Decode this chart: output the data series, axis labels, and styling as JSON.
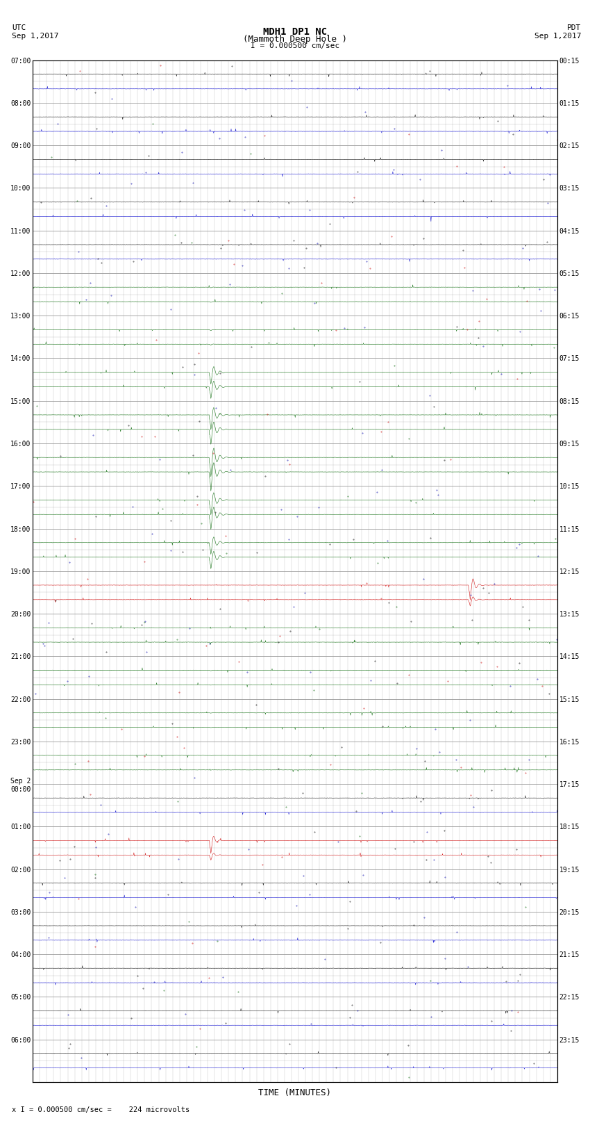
{
  "title_line1": "MDH1 DP1 NC",
  "title_line2": "(Mammoth Deep Hole )",
  "title_scale": "I = 0.000500 cm/sec",
  "label_utc": "UTC",
  "label_pdt": "PDT",
  "label_date_left": "Sep 1,2017",
  "label_date_right": "Sep 1,2017",
  "xlabel": "TIME (MINUTES)",
  "footer": "x I = 0.000500 cm/sec =    224 microvolts",
  "utc_labels": [
    "07:00",
    "08:00",
    "09:00",
    "10:00",
    "11:00",
    "12:00",
    "13:00",
    "14:00",
    "15:00",
    "16:00",
    "17:00",
    "18:00",
    "19:00",
    "20:00",
    "21:00",
    "22:00",
    "23:00",
    "Sep 2\n00:00",
    "01:00",
    "02:00",
    "03:00",
    "04:00",
    "05:00",
    "06:00"
  ],
  "pdt_labels": [
    "00:15",
    "01:15",
    "02:15",
    "03:15",
    "04:15",
    "05:15",
    "06:15",
    "07:15",
    "08:15",
    "09:15",
    "10:15",
    "11:15",
    "12:15",
    "13:15",
    "14:15",
    "15:15",
    "16:15",
    "17:15",
    "18:15",
    "19:15",
    "20:15",
    "21:15",
    "22:15",
    "23:15"
  ],
  "n_rows": 24,
  "n_cols": 15,
  "bg_color": "#ffffff",
  "grid_color": "#999999",
  "trace_color_normal_dark": "#000000",
  "trace_color_normal_blue": "#0000cc",
  "trace_color_normal_red": "#cc0000",
  "trace_color_green": "#006400",
  "trace_color_red_event": "#cc0000",
  "noise_amplitude": 0.006,
  "spike_amplitude": 0.04,
  "green_event_col": 5.1,
  "green_spike_rows": [
    7,
    8,
    9,
    10,
    11
  ],
  "green_spread_rows": [
    5,
    6,
    12,
    13,
    14,
    15,
    16
  ],
  "red_event1_row": 12,
  "red_event1_col": 12.5,
  "red_event2_row": 18,
  "red_event2_col": 5.1
}
